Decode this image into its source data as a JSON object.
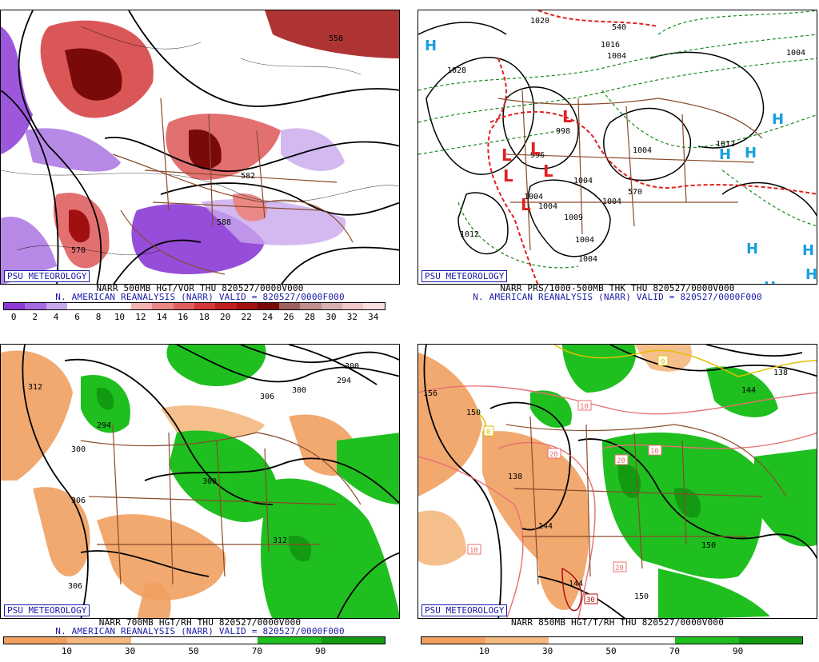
{
  "panels": [
    {
      "id": "tl",
      "badge": "PSU METEOROLOGY",
      "line1": "NARR 500MB HGT/VOR THU 820527/0000V000",
      "line2": "N. AMERICAN REANALYSIS (NARR) VALID = 820527/0000F000",
      "contour_labels": [
        "588",
        "582",
        "570",
        "558"
      ],
      "scale_labels": [
        "0",
        "2",
        "4",
        "6",
        "8",
        "10",
        "12",
        "14",
        "16",
        "18",
        "20",
        "22",
        "24",
        "26",
        "28",
        "30",
        "32",
        "34"
      ],
      "scale_colors": [
        "#8b3ad6",
        "#a56be0",
        "#c8a8ec",
        "#ffffff",
        "#ffffff",
        "#ffffff",
        "#f2b3b3",
        "#ea8888",
        "#e06060",
        "#d43a3a",
        "#c01f1f",
        "#a01010",
        "#7a0a0a",
        "#a06060",
        "#c09090",
        "#d8b0b0",
        "#f0c8c8",
        "#f8dede"
      ]
    },
    {
      "id": "tr",
      "badge": "PSU METEOROLOGY",
      "line1": "NARR PRS/1000-500MB THK THU 820527/0000V000",
      "line2": "N. AMERICAN REANALYSIS (NARR) VALID = 820527/0000F000",
      "contour_labels": [
        "1020",
        "1016",
        "1028",
        "1004",
        "1004",
        "1004",
        "1004",
        "1012",
        "1004",
        "1004",
        "1004",
        "1004",
        "1004",
        "1009",
        "998",
        "996",
        "540",
        "570",
        "1012"
      ],
      "highs": [
        "H",
        "H",
        "H",
        "H",
        "H",
        "H",
        "H",
        "H"
      ],
      "lows": [
        "L",
        "L",
        "L",
        "L",
        "L",
        "L"
      ]
    },
    {
      "id": "bl",
      "badge": "PSU METEOROLOGY",
      "line1": "NARR 700MB HGT/RH THU 820527/0000V000",
      "line2": "N. AMERICAN REANALYSIS (NARR) VALID = 820527/0000F000",
      "contour_labels": [
        "312",
        "294",
        "300",
        "306",
        "300",
        "306",
        "312",
        "300",
        "306",
        "294",
        "300"
      ],
      "scale_labels": [
        "10",
        "30",
        "50",
        "70",
        "90"
      ],
      "scale_colors": [
        "#f0a060",
        "#f4b880",
        "#ffffff",
        "#ffffff",
        "#1fbf1f",
        "#129a12"
      ]
    },
    {
      "id": "br",
      "badge": "PSU METEOROLOGY",
      "line1": "NARR 850MB HGT/T/RH THU 820527/0000V000",
      "line2": "",
      "contour_labels": [
        "156",
        "150",
        "138",
        "144",
        "150",
        "144",
        "150",
        "138",
        "144"
      ],
      "boxed_labels": [
        "0",
        "0",
        "10",
        "20",
        "10",
        "20",
        "10",
        "20",
        "30",
        "0"
      ],
      "scale_labels": [
        "10",
        "30",
        "50",
        "70",
        "90"
      ],
      "scale_colors": [
        "#f0a060",
        "#f4b880",
        "#ffffff",
        "#ffffff",
        "#1fbf1f",
        "#129a12"
      ]
    }
  ]
}
